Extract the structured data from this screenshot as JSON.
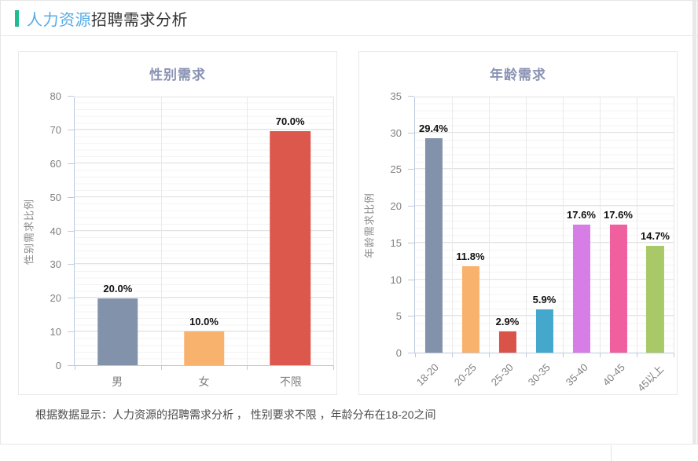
{
  "header": {
    "highlight": "人力资源",
    "rest": "招聘需求分析"
  },
  "summary": {
    "text": "根据数据显示：人力资源的招聘需求分析 ， 性别要求不限 ，年龄分布在18-20之间"
  },
  "colors": {
    "accent_bar": "#1fbc8e",
    "header_highlight": "#55abe6",
    "header_text": "#333333",
    "chart_title": "#8a92b4",
    "axis_line": "#bccadd",
    "grid_major": "#e3e3e3",
    "grid_minor": "#f3f3f3",
    "tick_text": "#7f7f7f",
    "value_label_text": "#111111"
  },
  "chart_data": [
    {
      "type": "bar",
      "title": "性别需求",
      "ylabel": "性别需求比例",
      "xlabel": "",
      "categories": [
        "男",
        "女",
        "不限"
      ],
      "values": [
        20.0,
        10.0,
        70.0
      ],
      "data_labels": [
        "20.0%",
        "10.0%",
        "70.0%"
      ],
      "ylim": [
        0,
        80
      ],
      "ystep": 10,
      "minor_per_major": 5,
      "bar_colors": [
        "#8292ab",
        "#f9b26e",
        "#dd584c"
      ],
      "rotate_x_labels": false,
      "grid": true,
      "legend": false
    },
    {
      "type": "bar",
      "title": "年龄需求",
      "ylabel": "年龄需求比例",
      "xlabel": "",
      "categories": [
        "18-20",
        "20-25",
        "25-30",
        "30-35",
        "35-40",
        "40-45",
        "45以上"
      ],
      "values": [
        29.4,
        11.8,
        2.9,
        5.9,
        17.6,
        17.6,
        14.7
      ],
      "data_labels": [
        "29.4%",
        "11.8%",
        "2.9%",
        "5.9%",
        "17.6%",
        "17.6%",
        "14.7%"
      ],
      "ylim": [
        0,
        35
      ],
      "ystep": 5,
      "minor_per_major": 5,
      "bar_colors": [
        "#8292ab",
        "#f9b26e",
        "#da5349",
        "#44a8cc",
        "#d77de6",
        "#f0609e",
        "#a9c968"
      ],
      "rotate_x_labels": true,
      "grid": true,
      "legend": false
    }
  ]
}
